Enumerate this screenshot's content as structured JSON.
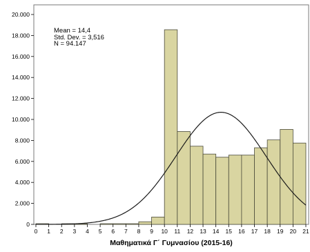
{
  "chart_data": {
    "type": "bar",
    "xlabel": "Μαθηματικά  Γ΄ Γυμνασίου (2015-16)",
    "ylabel": "",
    "x_ticks": [
      "0",
      "1",
      "2",
      "3",
      "4",
      "5",
      "6",
      "7",
      "8",
      "9",
      "10",
      "11",
      "12",
      "13",
      "14",
      "15",
      "16",
      "17",
      "18",
      "19",
      "20",
      "21"
    ],
    "y_ticks": [
      "0",
      "2.000",
      "4.000",
      "6.000",
      "8.000",
      "10.000",
      "12.000",
      "14.000",
      "16.000",
      "18.000",
      "20.000"
    ],
    "xlim": [
      0,
      21
    ],
    "ylim": [
      0,
      20000
    ],
    "bins": [
      {
        "start": 0,
        "end": 1,
        "value": 5
      },
      {
        "start": 1,
        "end": 2,
        "value": 0
      },
      {
        "start": 2,
        "end": 3,
        "value": 2
      },
      {
        "start": 3,
        "end": 4,
        "value": 6
      },
      {
        "start": 4,
        "end": 5,
        "value": 0
      },
      {
        "start": 5,
        "end": 6,
        "value": 12
      },
      {
        "start": 6,
        "end": 7,
        "value": 20
      },
      {
        "start": 7,
        "end": 8,
        "value": 60
      },
      {
        "start": 8,
        "end": 9,
        "value": 250
      },
      {
        "start": 9,
        "end": 10,
        "value": 700
      },
      {
        "start": 10,
        "end": 11,
        "value": 18550
      },
      {
        "start": 11,
        "end": 12,
        "value": 8850
      },
      {
        "start": 12,
        "end": 13,
        "value": 7450
      },
      {
        "start": 13,
        "end": 14,
        "value": 6700
      },
      {
        "start": 14,
        "end": 15,
        "value": 6400
      },
      {
        "start": 15,
        "end": 16,
        "value": 6600
      },
      {
        "start": 16,
        "end": 17,
        "value": 6600
      },
      {
        "start": 17,
        "end": 18,
        "value": 7300
      },
      {
        "start": 18,
        "end": 19,
        "value": 8050
      },
      {
        "start": 19,
        "end": 20,
        "value": 9050
      },
      {
        "start": 20,
        "end": 21,
        "value": 7750
      }
    ],
    "normal_curve": {
      "mean": 14.4,
      "sd": 3.516,
      "n": 94147,
      "bin_width": 1
    },
    "stats": {
      "mean_text": "Mean = 14,4",
      "sd_text": "Std. Dev. = 3,516",
      "n_text": "N = 94.147"
    },
    "grid": false,
    "colors": {
      "bar_fill": "#d9d5a1",
      "bar_stroke": "#4a4a3a",
      "plot_bg": "#ffffff",
      "frame": "#7a7a7a",
      "curve": "#1a1a1a"
    }
  }
}
